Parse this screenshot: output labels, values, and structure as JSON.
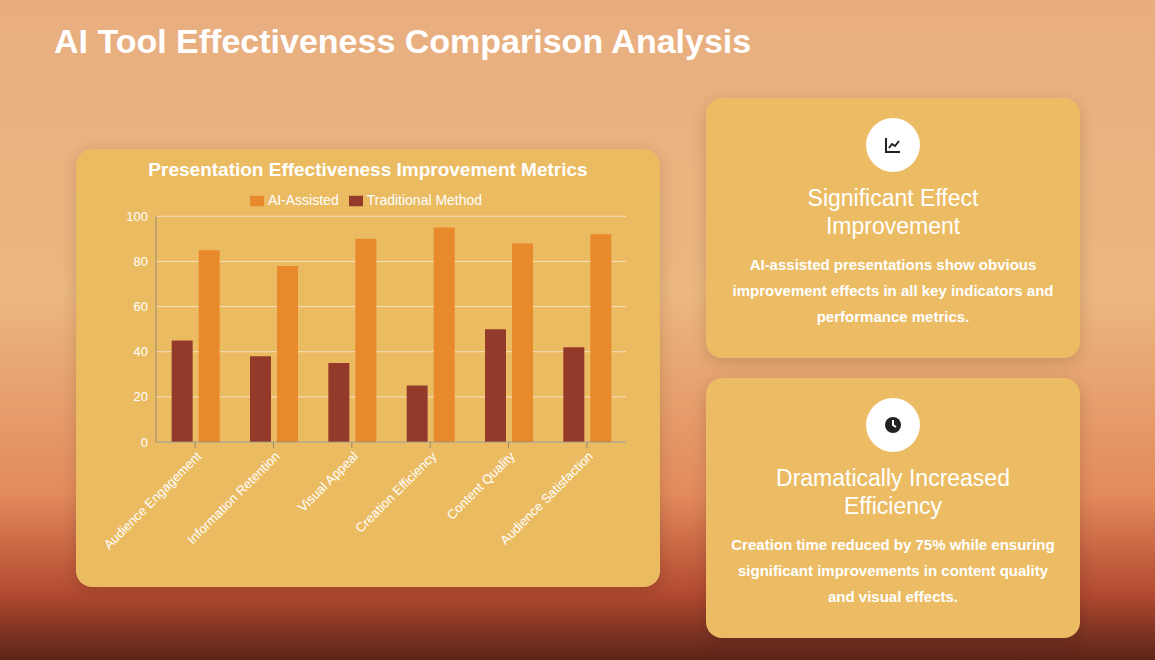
{
  "slide_title": "AI Tool Effectiveness Comparison Analysis",
  "chart_data": {
    "type": "bar",
    "title": "Presentation Effectiveness Improvement Metrics",
    "categories": [
      "Audience Engagement",
      "Information Retention",
      "Visual Appeal",
      "Creation Efficiency",
      "Content Quality",
      "Audience Satisfaction"
    ],
    "series": [
      {
        "name": "Traditional Method",
        "color": "#943a2a",
        "values": [
          45,
          38,
          35,
          25,
          50,
          42
        ]
      },
      {
        "name": "AI-Assisted",
        "color": "#e8892b",
        "values": [
          85,
          78,
          90,
          95,
          88,
          92
        ]
      }
    ],
    "ylim": [
      0,
      100
    ],
    "yticks": [
      0,
      20,
      40,
      60,
      80,
      100
    ],
    "grid": true,
    "legend": "top"
  },
  "cards": [
    {
      "title": "Significant Effect Improvement",
      "text": "AI-assisted presentations show obvious improvement effects in all key indicators and performance metrics."
    },
    {
      "title": "Dramatically Increased Efficiency",
      "text": "Creation time reduced by 75% while ensuring significant improvements in content quality and visual effects."
    }
  ]
}
